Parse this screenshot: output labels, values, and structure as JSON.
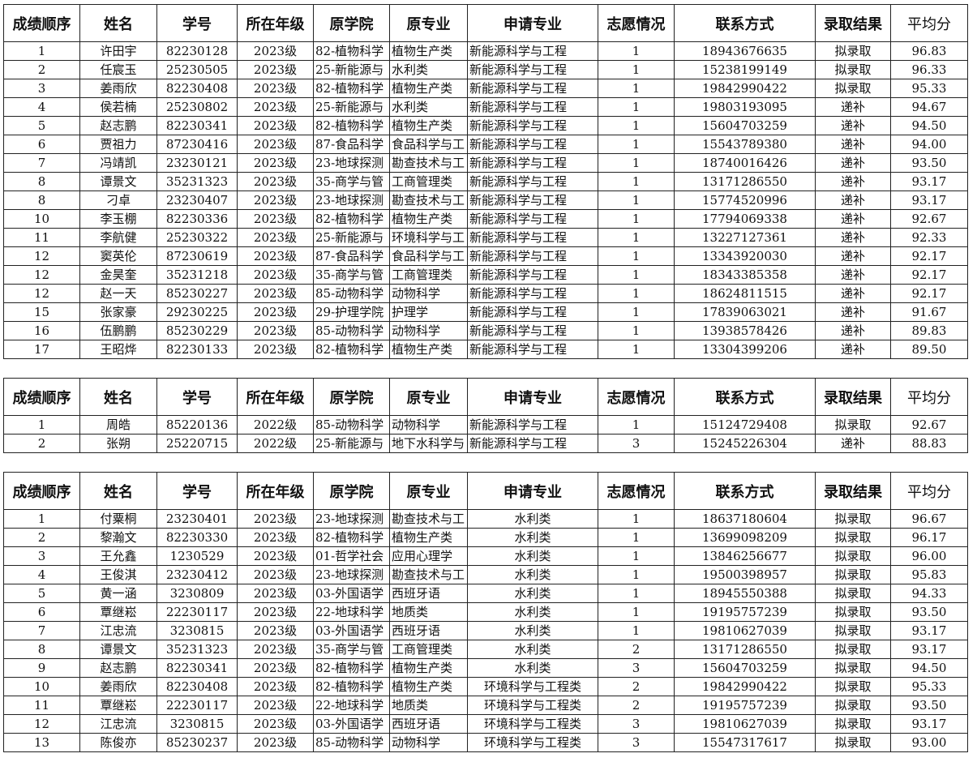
{
  "tables": [
    {
      "header": [
        "成绩顺序",
        "姓名",
        "学号",
        "所在年级",
        "原学院",
        "原专业",
        "申请专业",
        "志愿情况",
        "联系方式",
        "录取结果",
        "平均分"
      ],
      "rows": [
        [
          "1",
          "许田宇",
          "82230128",
          "2023级",
          "82-植物科学",
          "植物生产类",
          "新能源科学与工程",
          "1",
          "18943676635",
          "拟录取",
          "96.83"
        ],
        [
          "2",
          "任宸玉",
          "25230505",
          "2023级",
          "25-新能源与",
          "水利类",
          "新能源科学与工程",
          "1",
          "15238199149",
          "拟录取",
          "96.33"
        ],
        [
          "3",
          "姜雨欣",
          "82230408",
          "2023级",
          "82-植物科学",
          "植物生产类",
          "新能源科学与工程",
          "1",
          "19842990422",
          "拟录取",
          "95.33"
        ],
        [
          "4",
          "侯若楠",
          "25230802",
          "2023级",
          "25-新能源与",
          "水利类",
          "新能源科学与工程",
          "1",
          "19803193095",
          "递补",
          "94.67"
        ],
        [
          "5",
          "赵志鹏",
          "82230341",
          "2023级",
          "82-植物科学",
          "植物生产类",
          "新能源科学与工程",
          "1",
          "15604703259",
          "递补",
          "94.50"
        ],
        [
          "6",
          "贾祖力",
          "87230416",
          "2023级",
          "87-食品科学",
          "食品科学与工",
          "新能源科学与工程",
          "1",
          "15543789380",
          "递补",
          "94.00"
        ],
        [
          "7",
          "冯靖凯",
          "23230121",
          "2023级",
          "23-地球探测",
          "勘查技术与工",
          "新能源科学与工程",
          "1",
          "18740016426",
          "递补",
          "93.50"
        ],
        [
          "8",
          "谭景文",
          "35231323",
          "2023级",
          "35-商学与管",
          "工商管理类",
          "新能源科学与工程",
          "1",
          "13171286550",
          "递补",
          "93.17"
        ],
        [
          "8",
          "刁卓",
          "23230407",
          "2023级",
          "23-地球探测",
          "勘查技术与工",
          "新能源科学与工程",
          "1",
          "15774520996",
          "递补",
          "93.17"
        ],
        [
          "10",
          "李玉棚",
          "82230336",
          "2023级",
          "82-植物科学",
          "植物生产类",
          "新能源科学与工程",
          "1",
          "17794069338",
          "递补",
          "92.67"
        ],
        [
          "11",
          "李航健",
          "25230322",
          "2023级",
          "25-新能源与",
          "环境科学与工",
          "新能源科学与工程",
          "1",
          "13227127361",
          "递补",
          "92.33"
        ],
        [
          "12",
          "窦英伦",
          "87230619",
          "2023级",
          "87-食品科学",
          "食品科学与工",
          "新能源科学与工程",
          "1",
          "13343920030",
          "递补",
          "92.17"
        ],
        [
          "12",
          "金昊奎",
          "35231218",
          "2023级",
          "35-商学与管",
          "工商管理类",
          "新能源科学与工程",
          "1",
          "18343385358",
          "递补",
          "92.17"
        ],
        [
          "12",
          "赵一天",
          "85230227",
          "2023级",
          "85-动物科学",
          "动物科学",
          "新能源科学与工程",
          "1",
          "18624811515",
          "递补",
          "92.17"
        ],
        [
          "15",
          "张家豪",
          "29230225",
          "2023级",
          "29-护理学院",
          "护理学",
          "新能源科学与工程",
          "1",
          "17839063021",
          "递补",
          "91.67"
        ],
        [
          "16",
          "伍鹏鹏",
          "85230229",
          "2023级",
          "85-动物科学",
          "动物科学",
          "新能源科学与工程",
          "1",
          "13938578426",
          "递补",
          "89.83"
        ],
        [
          "17",
          "王昭烨",
          "82230133",
          "2023级",
          "82-植物科学",
          "植物生产类",
          "新能源科学与工程",
          "1",
          "13304399206",
          "递补",
          "89.50"
        ]
      ]
    },
    {
      "header": [
        "成绩顺序",
        "姓名",
        "学号",
        "所在年级",
        "原学院",
        "原专业",
        "申请专业",
        "志愿情况",
        "联系方式",
        "录取结果",
        "平均分"
      ],
      "rows": [
        [
          "1",
          "周皓",
          "85220136",
          "2022级",
          "85-动物科学",
          "动物科学",
          "新能源科学与工程",
          "1",
          "15124729408",
          "拟录取",
          "92.67"
        ],
        [
          "2",
          "张朔",
          "25220715",
          "2022级",
          "25-新能源与",
          "地下水科学与",
          "新能源科学与工程",
          "3",
          "15245226304",
          "递补",
          "88.83"
        ]
      ]
    },
    {
      "header": [
        "成绩顺序",
        "姓名",
        "学号",
        "所在年级",
        "原学院",
        "原专业",
        "申请专业",
        "志愿情况",
        "联系方式",
        "录取结果",
        "平均分"
      ],
      "rows": [
        [
          "1",
          "付粟桐",
          "23230401",
          "2023级",
          "23-地球探测",
          "勘查技术与工",
          "水利类",
          "1",
          "18637180604",
          "拟录取",
          "96.67"
        ],
        [
          "2",
          "黎瀚文",
          "82230330",
          "2023级",
          "82-植物科学",
          "植物生产类",
          "水利类",
          "1",
          "13699098209",
          "拟录取",
          "96.17"
        ],
        [
          "3",
          "王允鑫",
          "1230529",
          "2023级",
          "01-哲学社会",
          "应用心理学",
          "水利类",
          "1",
          "13846256677",
          "拟录取",
          "96.00"
        ],
        [
          "4",
          "王俊淇",
          "23230412",
          "2023级",
          "23-地球探测",
          "勘查技术与工",
          "水利类",
          "1",
          "19500398957",
          "拟录取",
          "95.83"
        ],
        [
          "5",
          "黄一涵",
          "3230809",
          "2023级",
          "03-外国语学",
          "西班牙语",
          "水利类",
          "1",
          "18945550388",
          "拟录取",
          "94.33"
        ],
        [
          "6",
          "覃继崧",
          "22230117",
          "2023级",
          "22-地球科学",
          "地质类",
          "水利类",
          "1",
          "19195757239",
          "拟录取",
          "93.50"
        ],
        [
          "7",
          "江忠流",
          "3230815",
          "2023级",
          "03-外国语学",
          "西班牙语",
          "水利类",
          "1",
          "19810627039",
          "拟录取",
          "93.17"
        ],
        [
          "8",
          "谭景文",
          "35231323",
          "2023级",
          "35-商学与管",
          "工商管理类",
          "水利类",
          "2",
          "13171286550",
          "拟录取",
          "93.17"
        ],
        [
          "9",
          "赵志鹏",
          "82230341",
          "2023级",
          "82-植物科学",
          "植物生产类",
          "水利类",
          "3",
          "15604703259",
          "拟录取",
          "94.50"
        ],
        [
          "10",
          "姜雨欣",
          "82230408",
          "2023级",
          "82-植物科学",
          "植物生产类",
          "环境科学与工程类",
          "2",
          "19842990422",
          "拟录取",
          "95.33"
        ],
        [
          "11",
          "覃继崧",
          "22230117",
          "2023级",
          "22-地球科学",
          "地质类",
          "环境科学与工程类",
          "2",
          "19195757239",
          "拟录取",
          "93.50"
        ],
        [
          "12",
          "江忠流",
          "3230815",
          "2023级",
          "03-外国语学",
          "西班牙语",
          "环境科学与工程类",
          "3",
          "19810627039",
          "拟录取",
          "93.17"
        ],
        [
          "13",
          "陈俊亦",
          "85230237",
          "2023级",
          "85-动物科学",
          "动物科学",
          "环境科学与工程类",
          "3",
          "15547317617",
          "拟录取",
          "93.00"
        ]
      ]
    }
  ]
}
